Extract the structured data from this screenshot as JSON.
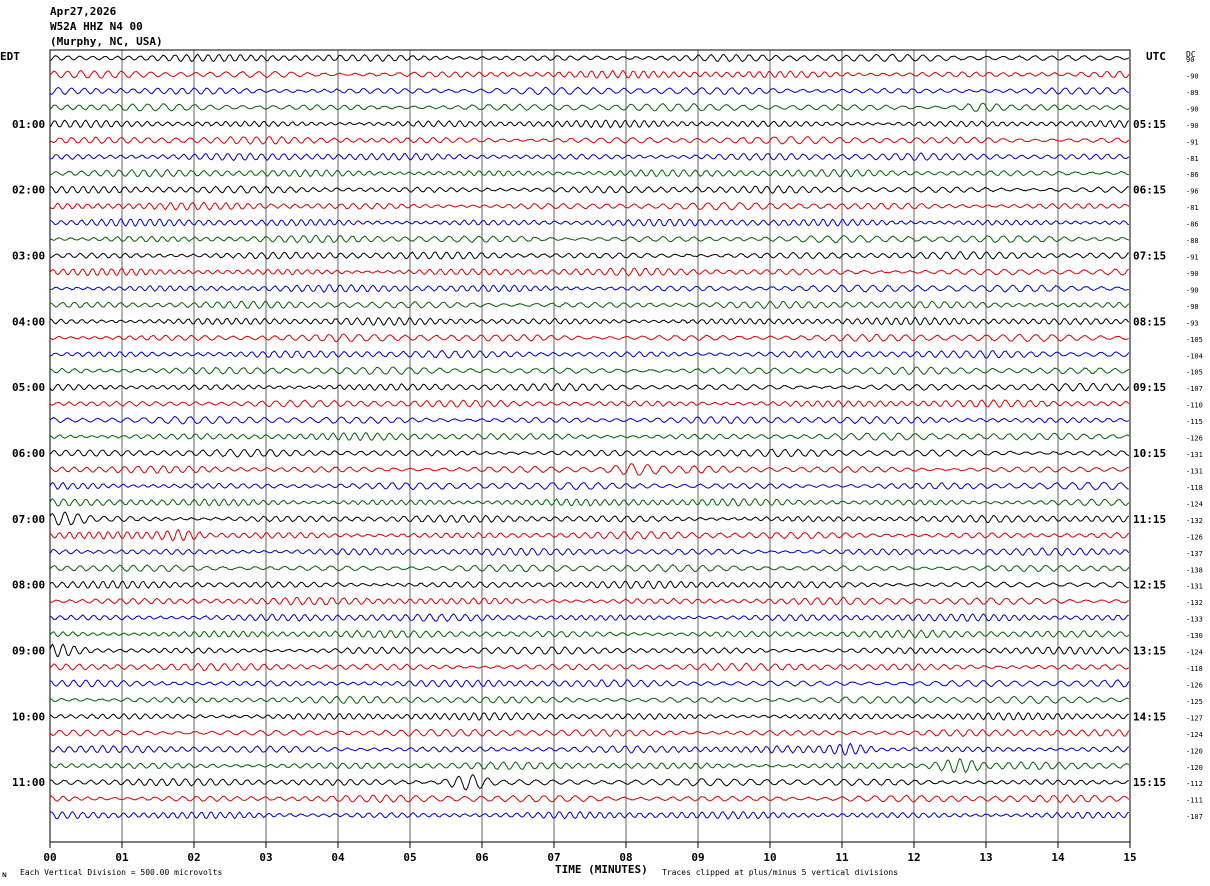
{
  "header": {
    "date": "Apr27,2026",
    "station": "W52A HHZ N4 00",
    "location": "(Murphy, NC, USA)"
  },
  "labels": {
    "left_tz": "EDT",
    "right_tz": "UTC",
    "dc": "DC",
    "xlabel": "TIME (MINUTES)",
    "scale_note": "Each Vertical Division =  500.00 microvolts",
    "clip_note": "Traces clipped at plus/minus 5 vertical divisions",
    "corner_mark": "ɴ"
  },
  "chart_data": {
    "type": "line",
    "title": "W52A HHZ N4 00",
    "xlabel": "TIME (MINUTES)",
    "xlim": [
      0,
      15
    ],
    "x_ticks": [
      "00",
      "01",
      "02",
      "03",
      "04",
      "05",
      "06",
      "07",
      "08",
      "09",
      "10",
      "11",
      "12",
      "13",
      "14",
      "15"
    ],
    "trace_colors": [
      "#000000",
      "#e00000",
      "#0000d0",
      "#006400"
    ],
    "grid": true,
    "left_hour_labels": [
      "01:00",
      "02:00",
      "03:00",
      "04:00",
      "05:00",
      "06:00",
      "07:00",
      "08:00",
      "09:00",
      "10:00",
      "11:00"
    ],
    "right_hour_labels": [
      "05:15",
      "06:15",
      "07:15",
      "08:15",
      "09:15",
      "10:15",
      "11:15",
      "12:15",
      "13:15",
      "14:15",
      "15:15"
    ],
    "dc_offsets": [
      "90",
      "-90",
      "-89",
      "-90",
      "-90",
      "-91",
      "-81",
      "-86",
      "-96",
      "-81",
      "-86",
      "-88",
      "-91",
      "-90",
      "-90",
      "-98",
      "-93",
      "-105",
      "-104",
      "-105",
      "-107",
      "-110",
      "-115",
      "-126",
      "-131",
      "-131",
      "-118",
      "-124",
      "-132",
      "-126",
      "-137",
      "-138",
      "-131",
      "-132",
      "-133",
      "-130",
      "-124",
      "-118",
      "-126",
      "-125",
      "-127",
      "-124",
      "-120",
      "-120",
      "-112",
      "-111",
      "-107"
    ],
    "events": [
      {
        "trace": 28,
        "minute": 0.2,
        "amplitude": 2.2
      },
      {
        "trace": 29,
        "minute": 1.8,
        "amplitude": 1.6
      },
      {
        "trace": 36,
        "minute": 0.15,
        "amplitude": 1.8
      },
      {
        "trace": 42,
        "minute": 11.1,
        "amplitude": 1.8
      },
      {
        "trace": 43,
        "minute": 12.6,
        "amplitude": 2.6
      },
      {
        "trace": 44,
        "minute": 5.8,
        "amplitude": 3.2
      },
      {
        "trace": 25,
        "minute": 8.1,
        "amplitude": 1.6
      },
      {
        "trace": 3,
        "minute": 12.9,
        "amplitude": 1.4
      }
    ]
  }
}
